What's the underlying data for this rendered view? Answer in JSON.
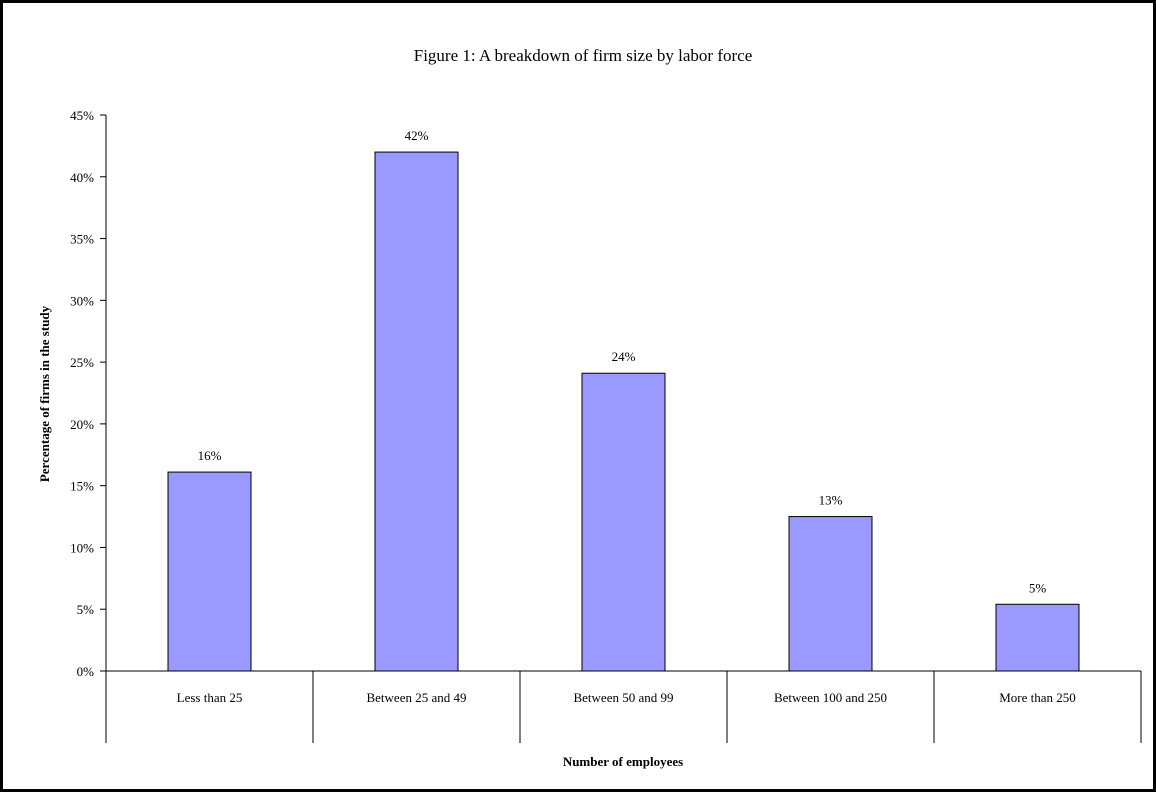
{
  "chart_data": {
    "type": "bar",
    "title": "Figure 1: A breakdown of firm size by labor force",
    "xlabel": "Number of employees",
    "ylabel": "Percentage of firms in the study",
    "categories": [
      "Less than 25",
      "Between 25 and 49",
      "Between 50 and 99",
      "Between 100 and 250",
      "More than 250"
    ],
    "values": [
      16.1,
      42.0,
      24.1,
      12.5,
      5.4
    ],
    "value_labels": [
      "16%",
      "42%",
      "24%",
      "13%",
      "5%"
    ],
    "ylim": [
      0,
      45
    ],
    "ytick_values": [
      0,
      5,
      10,
      15,
      20,
      25,
      30,
      35,
      40,
      45
    ],
    "ytick_labels": [
      "0%",
      "5%",
      "10%",
      "15%",
      "20%",
      "25%",
      "30%",
      "35%",
      "40%",
      "45%"
    ],
    "grid": false,
    "legend": "none",
    "colors": {
      "bar_fill": "#9999ff",
      "bar_stroke": "#000000",
      "axis": "#000000",
      "border": "#000000",
      "background": "#ffffff"
    }
  }
}
